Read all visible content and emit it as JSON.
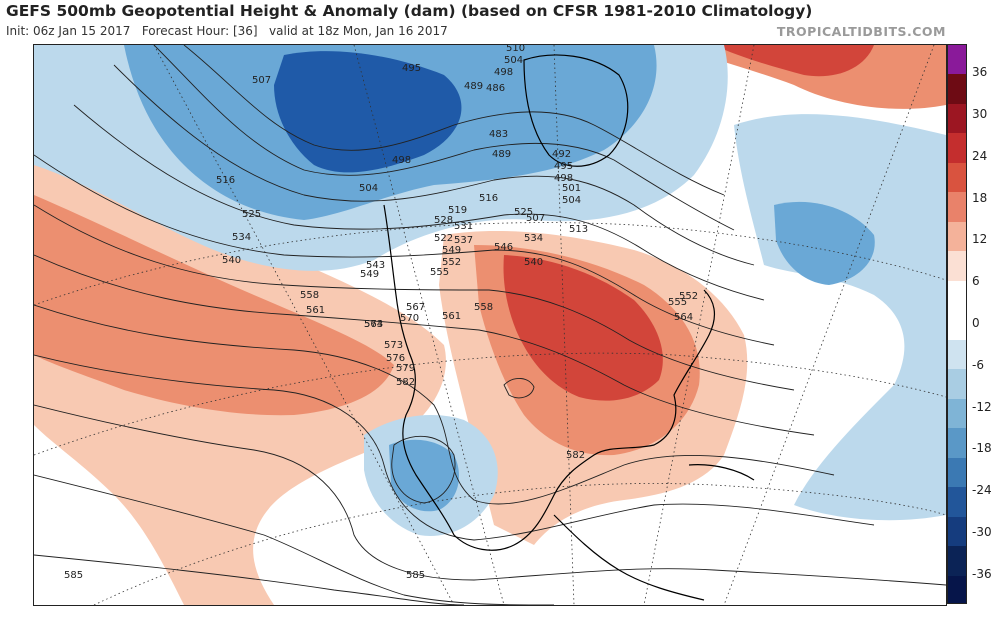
{
  "header": {
    "title": "GEFS 500mb Geopotential Height & Anomaly (dam) (based on CFSR 1981-2010 Climatology)",
    "init": "Init: 06z Jan 15 2017",
    "forecast_hour": "Forecast Hour: [36]",
    "valid": "valid at 18z Mon, Jan 16 2017",
    "credit": "TROPICALTIDBITS.COM"
  },
  "colorbar": {
    "labels": [
      "36",
      "30",
      "24",
      "18",
      "12",
      "6",
      "0",
      "-6",
      "-12",
      "-18",
      "-24",
      "-30",
      "-36"
    ],
    "colors": [
      "#8a1a9a",
      "#6e0b14",
      "#9c1622",
      "#c42e2e",
      "#d9533f",
      "#e9826a",
      "#f4b29a",
      "#fbe0d4",
      "#ffffff",
      "#ffffff",
      "#cfe3f0",
      "#a9cde3",
      "#7fb4d6",
      "#5a98c7",
      "#3b79b3",
      "#22569a",
      "#153c7e",
      "#0b2356",
      "#06154a"
    ]
  },
  "contour_labels": [
    "510",
    "504",
    "498",
    "495",
    "489",
    "486",
    "483",
    "489",
    "492",
    "495",
    "498",
    "501",
    "504",
    "507",
    "507",
    "513",
    "516",
    "516",
    "519",
    "522",
    "525",
    "525",
    "528",
    "531",
    "534",
    "534",
    "537",
    "540",
    "540",
    "543",
    "546",
    "549",
    "549",
    "552",
    "552",
    "555",
    "555",
    "558",
    "558",
    "561",
    "561",
    "564",
    "564",
    "567",
    "570",
    "573",
    "573",
    "576",
    "579",
    "582",
    "582",
    "585",
    "585",
    "498",
    "504"
  ],
  "anomaly_colors": {
    "strong_negative": "#1f5aa8",
    "negative": "#6aa8d6",
    "weak_negative": "#bcd9ec",
    "weak_positive": "#f8c9b2",
    "positive": "#ec8f70",
    "strong_positive": "#d2453a",
    "contour": "#222222",
    "land": "#000000"
  }
}
